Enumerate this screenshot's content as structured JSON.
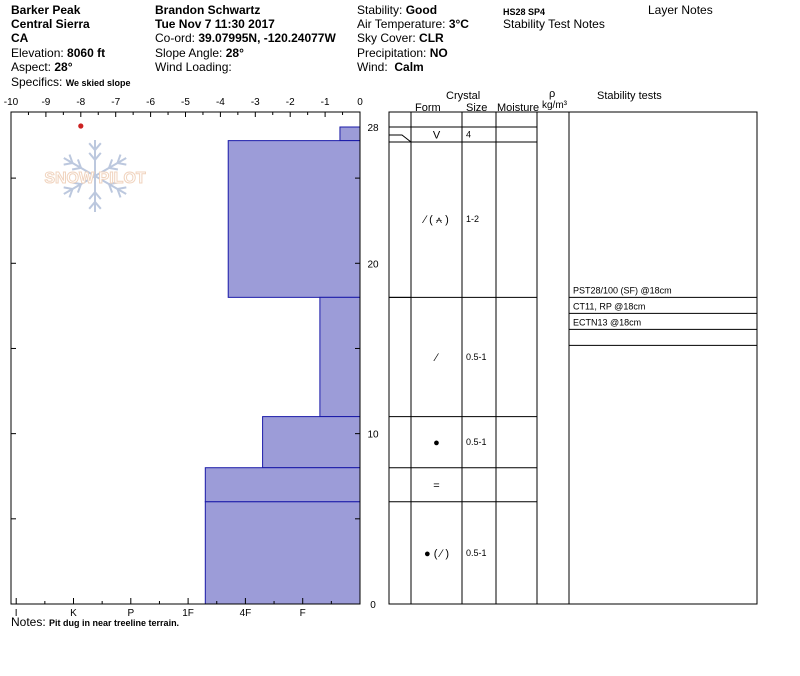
{
  "header": {
    "location": "Barker Peak",
    "range": "Central Sierra",
    "state": "CA",
    "elevation_label": "Elevation:",
    "elevation_value": "8060 ft",
    "aspect_label": "Aspect:",
    "aspect_value": "28°",
    "specifics_label": "Specifics:",
    "specifics_value": "We skied slope",
    "observer": "Brandon Schwartz",
    "datetime": "Tue Nov 7 11:30 2017",
    "coord_label": "Co-ord:",
    "coord_value": "39.07995N, -120.24077W",
    "slope_label": "Slope Angle:",
    "slope_value": "28°",
    "wind_loading_label": "Wind Loading:",
    "stability_label": "Stability:",
    "stability_value": "Good",
    "air_temp_label": "Air Temperature:",
    "air_temp_value": "3°C",
    "sky_label": "Sky Cover:",
    "sky_value": "CLR",
    "precip_label": "Precipitation:",
    "precip_value": "NO",
    "wind_label": "Wind:",
    "wind_value": "Calm",
    "hs_code": "HS28 SP4",
    "stability_test_notes": "Stability Test Notes",
    "layer_notes": "Layer Notes"
  },
  "watermark": "SNOW PILOT",
  "notes_label": "Notes:",
  "notes_value": "Pit dug in near treeline terrain.",
  "columns": {
    "crystal": "Crystal",
    "form": "Form",
    "size": "Size",
    "moisture": "Moisture",
    "rho": "ρ",
    "density_unit": "kg/m³",
    "stability_tests": "Stability tests"
  },
  "layers_table": [
    {
      "top": 28,
      "bottom": 27.2,
      "form": "V",
      "size": "4"
    },
    {
      "top": 27.2,
      "bottom": 18,
      "form": "∕ ( ⩜ )",
      "size": "1-2"
    },
    {
      "top": 18,
      "bottom": 11,
      "form": "∕",
      "size": "0.5-1"
    },
    {
      "top": 11,
      "bottom": 8,
      "form": "●",
      "size": "0.5-1"
    },
    {
      "top": 8,
      "bottom": 6,
      "form": "=",
      "size": ""
    },
    {
      "top": 6,
      "bottom": 0,
      "form": "● ( ∕ )",
      "size": "0.5-1"
    }
  ],
  "stability_tests": [
    {
      "text": "PST28/100 (SF) @18cm",
      "depth": 18
    },
    {
      "text": "CT11, RP @18cm",
      "depth": 18
    },
    {
      "text": "ECTN13 @18cm",
      "depth": 18
    }
  ],
  "chart_data": {
    "type": "bar",
    "description_type": "snow pit profile (hand hardness vs height)",
    "temp_axis": {
      "ticks": [
        -10,
        -9,
        -8,
        -7,
        -6,
        -5,
        -4,
        -3,
        -2,
        -1,
        0
      ],
      "range": [
        -10,
        0
      ]
    },
    "height_axis": {
      "ticks": [
        0,
        10,
        20,
        28
      ],
      "range": [
        0,
        28
      ],
      "unit": "cm"
    },
    "hardness_axis": {
      "ticks": [
        "I",
        "K",
        "P",
        "1F",
        "4F",
        "F"
      ]
    },
    "hardness_scale_note": "hardness index: 0 = none; F = 1; 4F = 2; 1F = 3; P = 4; K = 5; I = 6",
    "layers": [
      {
        "top": 28,
        "bottom": 27.2,
        "hardness_index": 0.35
      },
      {
        "top": 27.2,
        "bottom": 18,
        "hardness_index": 2.3
      },
      {
        "top": 18,
        "bottom": 11,
        "hardness_index": 0.7
      },
      {
        "top": 11,
        "bottom": 8,
        "hardness_index": 1.7
      },
      {
        "top": 8,
        "bottom": 6,
        "hardness_index": 2.7
      },
      {
        "top": 6,
        "bottom": 0,
        "hardness_index": 2.7
      }
    ],
    "temperature_points": [
      {
        "height": 28,
        "temp": -8
      }
    ],
    "bar_color": "#9c9cd8",
    "bar_edge_color": "#1a1aa8",
    "temp_point_color": "#cc2222"
  }
}
